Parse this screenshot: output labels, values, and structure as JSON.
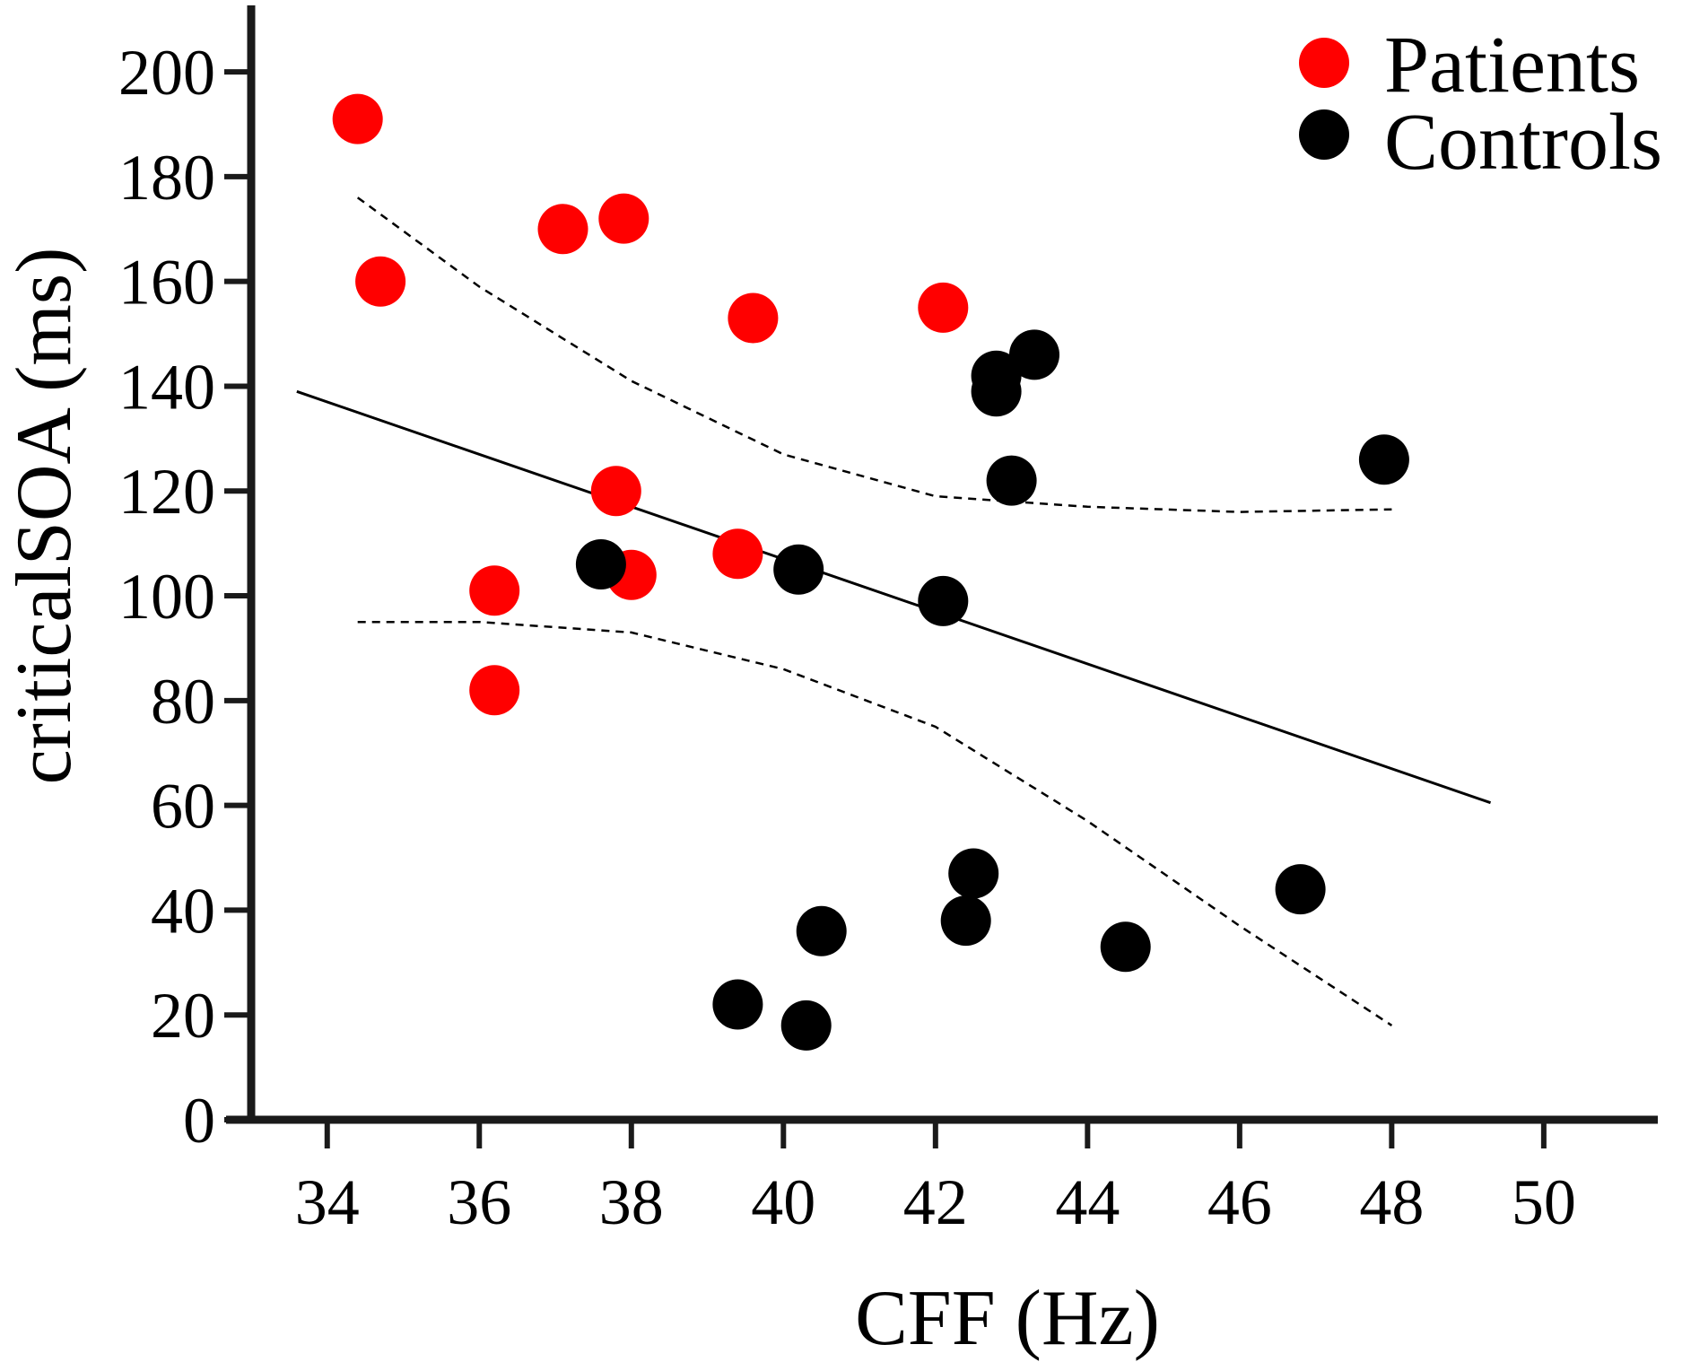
{
  "chart_data": {
    "type": "scatter",
    "title": "",
    "xlabel": "CFF (Hz)",
    "ylabel": "criticalSOA (ms)",
    "xlim": [
      33,
      51.5
    ],
    "ylim": [
      0,
      212
    ],
    "xticks": [
      34,
      36,
      38,
      40,
      42,
      44,
      46,
      48,
      50
    ],
    "yticks": [
      0,
      20,
      40,
      60,
      80,
      100,
      120,
      140,
      160,
      180,
      200
    ],
    "grid": false,
    "legend_position": "top-right",
    "series": [
      {
        "name": "Patients",
        "color": "#ff0000",
        "points": [
          {
            "x": 34.4,
            "y": 191
          },
          {
            "x": 34.7,
            "y": 160
          },
          {
            "x": 37.1,
            "y": 170
          },
          {
            "x": 37.9,
            "y": 172
          },
          {
            "x": 39.6,
            "y": 153
          },
          {
            "x": 42.1,
            "y": 155
          },
          {
            "x": 37.8,
            "y": 120
          },
          {
            "x": 38.0,
            "y": 104
          },
          {
            "x": 39.4,
            "y": 108
          },
          {
            "x": 36.2,
            "y": 101
          },
          {
            "x": 36.2,
            "y": 82
          }
        ]
      },
      {
        "name": "Controls",
        "color": "#000000",
        "points": [
          {
            "x": 43.3,
            "y": 146
          },
          {
            "x": 42.8,
            "y": 142
          },
          {
            "x": 42.8,
            "y": 139
          },
          {
            "x": 43.0,
            "y": 122
          },
          {
            "x": 47.9,
            "y": 126
          },
          {
            "x": 37.6,
            "y": 106
          },
          {
            "x": 40.2,
            "y": 105
          },
          {
            "x": 42.1,
            "y": 99
          },
          {
            "x": 42.5,
            "y": 47
          },
          {
            "x": 42.4,
            "y": 38
          },
          {
            "x": 46.8,
            "y": 44
          },
          {
            "x": 44.5,
            "y": 33
          },
          {
            "x": 40.5,
            "y": 36
          },
          {
            "x": 39.4,
            "y": 22
          },
          {
            "x": 40.3,
            "y": 18
          }
        ]
      }
    ],
    "regression_line": {
      "x": [
        33.6,
        49.3
      ],
      "y": [
        139,
        60.5
      ]
    },
    "confidence_band_upper": {
      "x": [
        34.4,
        36,
        38,
        40,
        42,
        44,
        46,
        48
      ],
      "y": [
        176,
        159,
        141,
        127,
        119,
        117,
        116,
        116.5
      ]
    },
    "confidence_band_lower": {
      "x": [
        34.4,
        36,
        38,
        40,
        42,
        44,
        46,
        48
      ],
      "y": [
        95,
        95,
        93,
        86,
        75,
        57,
        37,
        18
      ]
    }
  }
}
